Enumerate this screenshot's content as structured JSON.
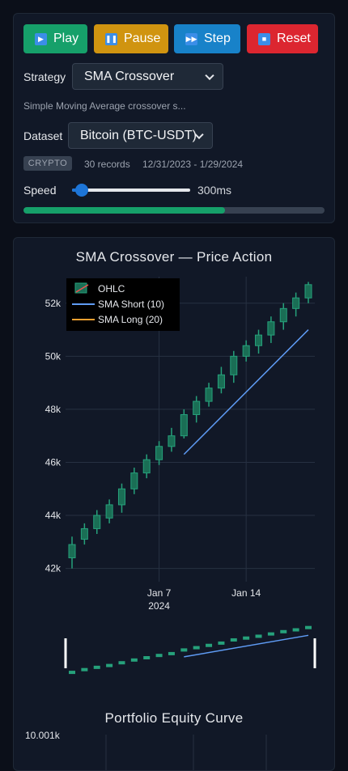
{
  "controls": {
    "play_label": "Play",
    "pause_label": "Pause",
    "step_label": "Step",
    "reset_label": "Reset",
    "strategy_label": "Strategy",
    "strategy_value": "SMA Crossover",
    "strategy_description": "Simple Moving Average crossover s...",
    "dataset_label": "Dataset",
    "dataset_value": "Bitcoin (BTC-USDT)",
    "dataset_badge": "CRYPTO",
    "dataset_records": "30 records",
    "dataset_range": "12/31/2023 - 1/29/2024",
    "speed_label": "Speed",
    "speed_value": "300ms",
    "speed_fraction": 0.08,
    "progress_fraction": 0.67
  },
  "colors": {
    "up": "#26a17b",
    "down": "#ef5350",
    "sma_short": "#5f9cf5",
    "sma_long": "#f0a030"
  },
  "chart_data": [
    {
      "type": "candlestick",
      "title": "SMA Crossover — Price Action",
      "legend": [
        "OHLC",
        "SMA Short (10)",
        "SMA Long (20)"
      ],
      "legend_placement": "top-left",
      "grid": true,
      "x_ticks": [
        "Jan 7\n2024",
        "Jan 14"
      ],
      "y_ticks": [
        "42k",
        "44k",
        "46k",
        "48k",
        "50k",
        "52k"
      ],
      "ylim": [
        41500,
        53000
      ],
      "candles": [
        {
          "date": "2023-12-31",
          "open": 42400,
          "high": 43200,
          "low": 42000,
          "close": 42900
        },
        {
          "date": "2024-01-01",
          "open": 43100,
          "high": 43700,
          "low": 42900,
          "close": 43500
        },
        {
          "date": "2024-01-02",
          "open": 43500,
          "high": 44200,
          "low": 43300,
          "close": 44000
        },
        {
          "date": "2024-01-03",
          "open": 43900,
          "high": 44600,
          "low": 43700,
          "close": 44400
        },
        {
          "date": "2024-01-04",
          "open": 44400,
          "high": 45200,
          "low": 44100,
          "close": 45000
        },
        {
          "date": "2024-01-05",
          "open": 45000,
          "high": 45800,
          "low": 44800,
          "close": 45600
        },
        {
          "date": "2024-01-06",
          "open": 45600,
          "high": 46300,
          "low": 45400,
          "close": 46100
        },
        {
          "date": "2024-01-07",
          "open": 46100,
          "high": 46800,
          "low": 45900,
          "close": 46600
        },
        {
          "date": "2024-01-08",
          "open": 46600,
          "high": 47300,
          "low": 46400,
          "close": 47000
        },
        {
          "date": "2024-01-09",
          "open": 47000,
          "high": 48000,
          "low": 46900,
          "close": 47800
        },
        {
          "date": "2024-01-10",
          "open": 47800,
          "high": 48500,
          "low": 47500,
          "close": 48300
        },
        {
          "date": "2024-01-11",
          "open": 48300,
          "high": 49000,
          "low": 48100,
          "close": 48800
        },
        {
          "date": "2024-01-12",
          "open": 48800,
          "high": 49600,
          "low": 48600,
          "close": 49300
        },
        {
          "date": "2024-01-13",
          "open": 49300,
          "high": 50200,
          "low": 49000,
          "close": 50000
        },
        {
          "date": "2024-01-14",
          "open": 50000,
          "high": 50600,
          "low": 49800,
          "close": 50400
        },
        {
          "date": "2024-01-15",
          "open": 50400,
          "high": 51000,
          "low": 50100,
          "close": 50800
        },
        {
          "date": "2024-01-16",
          "open": 50800,
          "high": 51500,
          "low": 50500,
          "close": 51300
        },
        {
          "date": "2024-01-17",
          "open": 51300,
          "high": 52000,
          "low": 51000,
          "close": 51800
        },
        {
          "date": "2024-01-18",
          "open": 51800,
          "high": 52400,
          "low": 51500,
          "close": 52200
        },
        {
          "date": "2024-01-19",
          "open": 52200,
          "high": 52800,
          "low": 52000,
          "close": 52700
        }
      ],
      "sma_short": {
        "name": "SMA Short (10)",
        "x": [
          "2024-01-09",
          "2024-01-19"
        ],
        "y": [
          46300,
          51000
        ]
      },
      "sma_long": {
        "name": "SMA Long (20)",
        "x": [],
        "y": []
      }
    },
    {
      "type": "line",
      "title": "Portfolio Equity Curve",
      "y_ticks": [
        "10.001k"
      ]
    }
  ]
}
